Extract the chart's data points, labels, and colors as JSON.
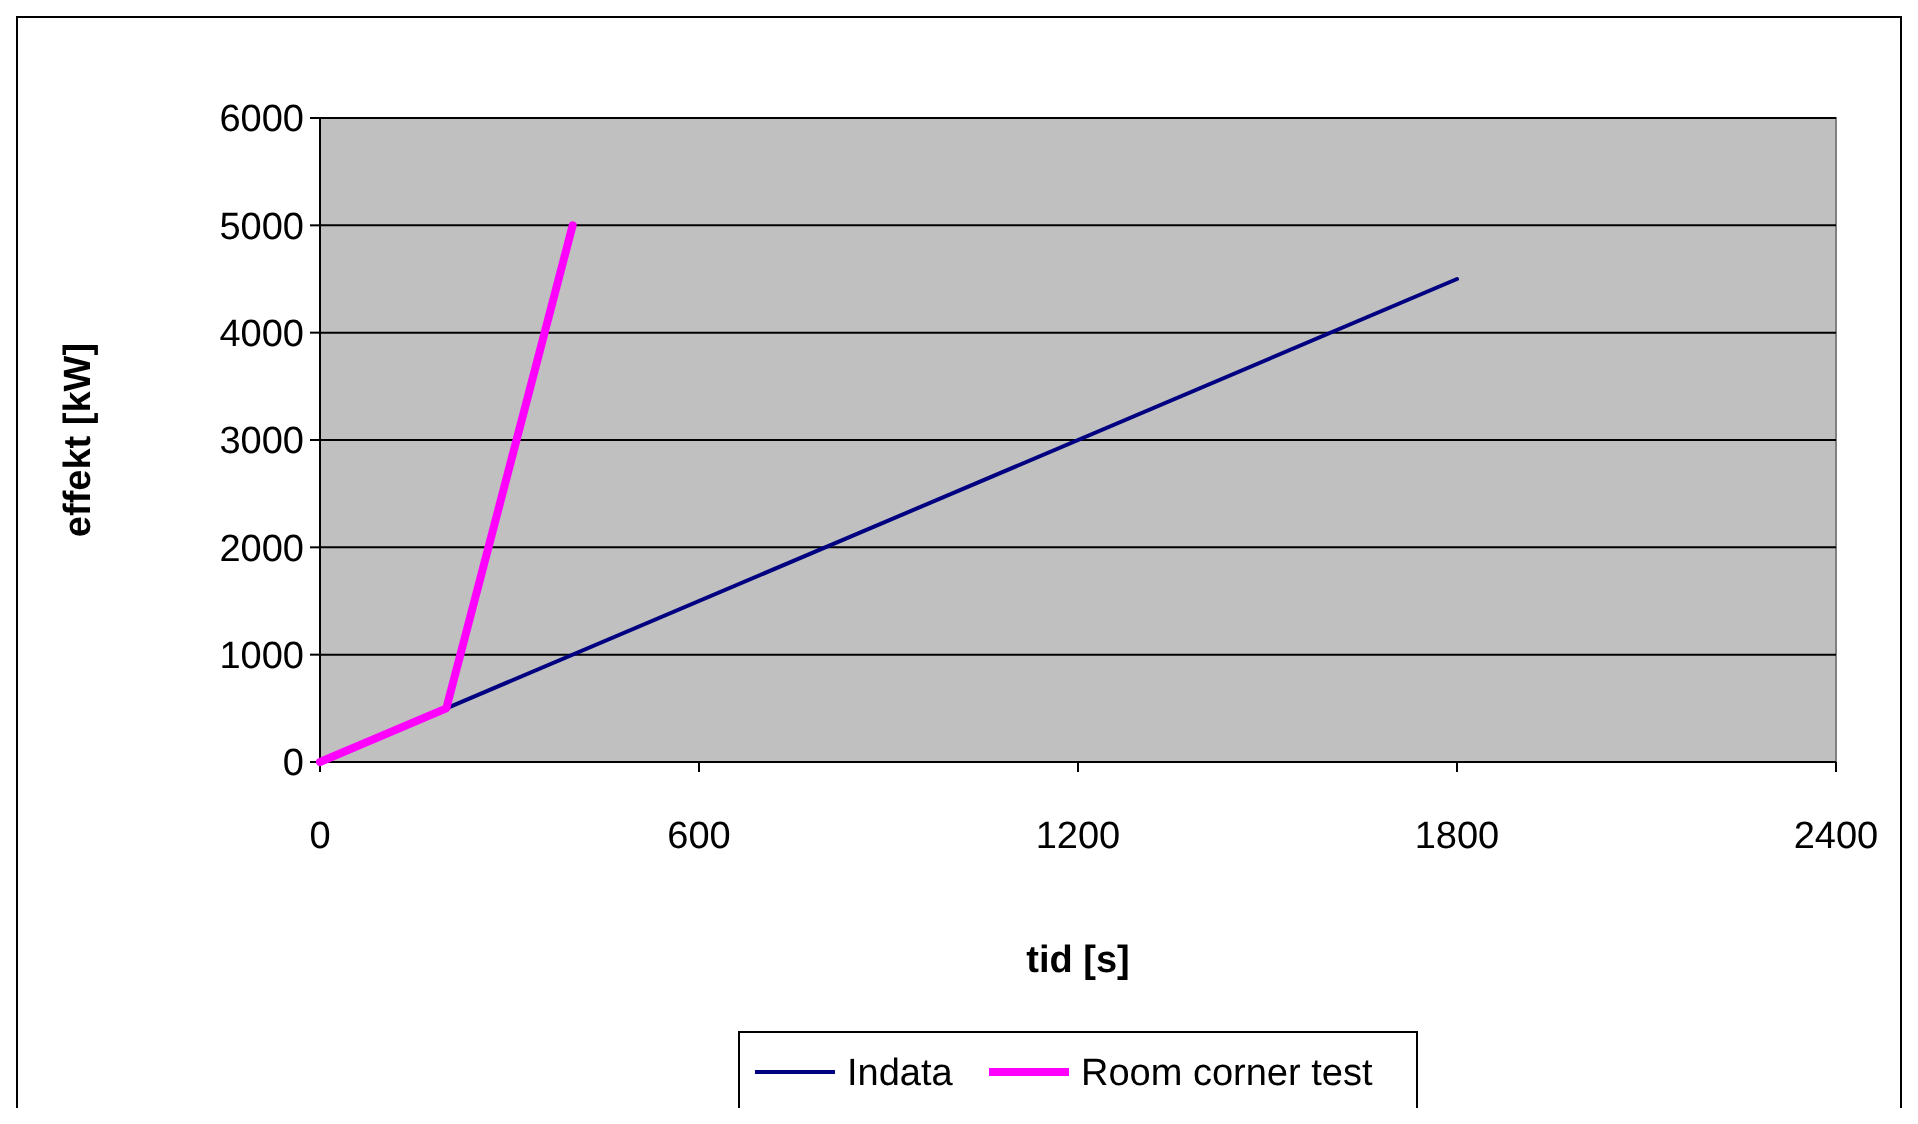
{
  "chart_data": {
    "type": "line",
    "xlabel": "tid [s]",
    "ylabel": "effekt [kW]",
    "xlim": [
      0,
      2400
    ],
    "xticks": [
      0,
      600,
      1200,
      1800,
      2400
    ],
    "ylim": [
      0,
      6000
    ],
    "yticks": [
      0,
      1000,
      2000,
      3000,
      4000,
      5000,
      6000
    ],
    "grid": "y",
    "legend": "bottom",
    "marker": "none",
    "line_style": "solid",
    "series": [
      {
        "name": "Indata",
        "color": "#000080",
        "x": [
          0,
          200,
          1800
        ],
        "values": [
          0,
          500,
          4500
        ]
      },
      {
        "name": "Room corner test",
        "color": "#ff00ff",
        "x": [
          0,
          200,
          400
        ],
        "values": [
          0,
          500,
          5000
        ]
      }
    ]
  }
}
